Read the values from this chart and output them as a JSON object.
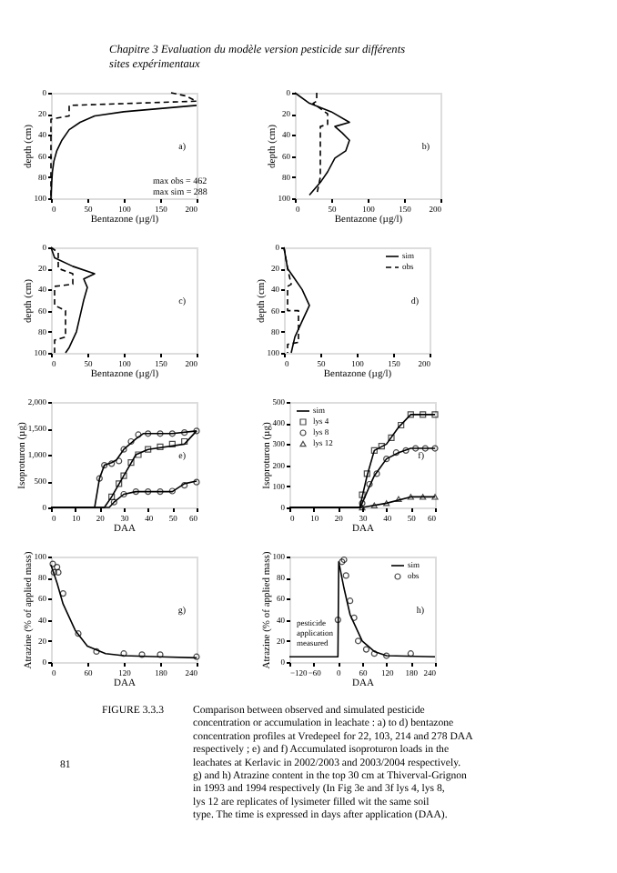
{
  "chart_data": [
    {
      "type": "other",
      "title": "Chapitre 3 Evaluation du modèle version pesticide sur différents sites expérimentaux"
    },
    {
      "type": "line",
      "xlabel": "Bentazone (µg/l)",
      "ylabel": "depth (cm)",
      "xlim": [
        0,
        200
      ],
      "ylim": [
        100,
        0
      ],
      "xticks": [
        0,
        50,
        100,
        150,
        200
      ],
      "yticks": [
        0,
        20,
        40,
        60,
        80,
        100
      ],
      "annotations": [
        "a)",
        "max obs = 462",
        "max sim = 288"
      ],
      "series": [
        {
          "color": "#000000",
          "line_style": "solid",
          "x": [
            200,
            150,
            100,
            60,
            40,
            25,
            15,
            8,
            4,
            2,
            1,
            0
          ],
          "values": [
            12,
            15,
            18,
            22,
            28,
            35,
            45,
            55,
            65,
            75,
            85,
            100
          ]
        },
        {
          "color": "#000000",
          "line_style": "dashed",
          "x": [
            165,
            185,
            200,
            25,
            25,
            0,
            0
          ],
          "values": [
            0,
            3,
            8,
            12,
            22,
            25,
            100
          ]
        }
      ]
    },
    {
      "type": "line",
      "xlabel": "Bentazone (µg/l)",
      "ylabel": "depth (cm)",
      "xlim": [
        0,
        200
      ],
      "ylim": [
        100,
        0
      ],
      "xticks": [
        0,
        50,
        100,
        150,
        200
      ],
      "yticks": [
        0,
        20,
        40,
        60,
        80,
        100
      ],
      "annotations": [
        "b)"
      ],
      "series": [
        {
          "color": "#000000",
          "line_style": "solid",
          "x": [
            0,
            20,
            50,
            75,
            55,
            65,
            75,
            70,
            55,
            45,
            35,
            20
          ],
          "values": [
            0,
            10,
            18,
            28,
            32,
            38,
            45,
            55,
            62,
            75,
            85,
            97
          ]
        },
        {
          "color": "#000000",
          "line_style": "dashed",
          "x": [
            30,
            30,
            25,
            45,
            45,
            35,
            35,
            30
          ],
          "values": [
            0,
            8,
            10,
            20,
            30,
            32,
            80,
            97
          ]
        }
      ]
    },
    {
      "type": "line",
      "xlabel": "Bentazone (µg/l)",
      "ylabel": "depth (cm)",
      "xlim": [
        0,
        200
      ],
      "ylim": [
        100,
        0
      ],
      "xticks": [
        0,
        50,
        100,
        150,
        200
      ],
      "yticks": [
        0,
        20,
        40,
        60,
        80,
        100
      ],
      "annotations": [
        "c)"
      ],
      "series": [
        {
          "color": "#000000",
          "line_style": "solid",
          "x": [
            0,
            5,
            30,
            60,
            45,
            50,
            45,
            40,
            35,
            25,
            20
          ],
          "values": [
            0,
            10,
            18,
            25,
            30,
            38,
            50,
            65,
            80,
            95,
            100
          ]
        },
        {
          "color": "#000000",
          "line_style": "dashed",
          "x": [
            0,
            10,
            10,
            30,
            30,
            5,
            5,
            20,
            20,
            5,
            5
          ],
          "values": [
            0,
            5,
            20,
            25,
            35,
            37,
            55,
            60,
            85,
            88,
            100
          ]
        }
      ]
    },
    {
      "type": "line",
      "xlabel": "Bentazone (µg/l)",
      "ylabel": "depth (cm)",
      "xlim": [
        0,
        200
      ],
      "ylim": [
        100,
        0
      ],
      "xticks": [
        0,
        50,
        100,
        150,
        200
      ],
      "yticks": [
        0,
        20,
        40,
        60,
        80,
        100
      ],
      "annotations": [
        "d)"
      ],
      "legend": "top right",
      "series": [
        {
          "name": "sim",
          "color": "#000000",
          "line_style": "solid",
          "x": [
            0,
            5,
            15,
            25,
            35,
            25,
            15,
            10
          ],
          "values": [
            0,
            20,
            30,
            40,
            55,
            70,
            85,
            100
          ]
        },
        {
          "name": "obs",
          "color": "#000000",
          "line_style": "dashed",
          "x": [
            0,
            5,
            10,
            5,
            5,
            20,
            20,
            5,
            5
          ],
          "values": [
            0,
            20,
            35,
            37,
            60,
            60,
            90,
            92,
            100
          ]
        }
      ]
    },
    {
      "type": "line",
      "xlabel": "DAA",
      "ylabel": "Isoproturon (µg)",
      "xlim": [
        0,
        60
      ],
      "ylim": [
        0,
        2000
      ],
      "xticks": [
        0,
        10,
        20,
        30,
        40,
        50,
        60
      ],
      "yticks": [
        0,
        500,
        {
          "value": 1000,
          "label": "1,000"
        },
        {
          "value": 1500,
          "label": "1,500"
        },
        {
          "value": 2000,
          "label": "2,000"
        }
      ],
      "annotations": [
        "e)"
      ],
      "series": [
        {
          "color": "#000000",
          "line_style": "solid",
          "x": [
            0,
            18,
            20,
            22,
            25,
            27,
            30,
            35,
            38,
            50,
            60
          ],
          "values": [
            0,
            0,
            550,
            800,
            850,
            900,
            1100,
            1300,
            1400,
            1400,
            1450
          ]
        },
        {
          "color": "#000000",
          "line_style": "solid",
          "x": [
            0,
            22,
            25,
            30,
            35,
            40,
            55,
            60
          ],
          "values": [
            0,
            0,
            200,
            600,
            1000,
            1100,
            1200,
            1450
          ]
        },
        {
          "color": "#000000",
          "line_style": "solid",
          "x": [
            0,
            24,
            26,
            30,
            35,
            50,
            55,
            60
          ],
          "values": [
            0,
            0,
            100,
            250,
            300,
            300,
            450,
            500
          ]
        },
        {
          "type": "scatter",
          "color": "#000000",
          "marker": "circle",
          "x": [
            20,
            22,
            25,
            28,
            30,
            33,
            36,
            40,
            45,
            50,
            55,
            60
          ],
          "values": [
            550,
            800,
            830,
            880,
            1100,
            1250,
            1380,
            1400,
            1400,
            1400,
            1420,
            1450
          ]
        },
        {
          "type": "scatter",
          "color": "#000000",
          "marker": "square",
          "x": [
            25,
            28,
            30,
            33,
            36,
            40,
            45,
            50,
            55
          ],
          "values": [
            200,
            450,
            600,
            850,
            1000,
            1100,
            1150,
            1200,
            1250
          ]
        },
        {
          "type": "scatter",
          "color": "#000000",
          "marker": "circle",
          "x": [
            26,
            30,
            35,
            40,
            45,
            50,
            55,
            60
          ],
          "values": [
            100,
            250,
            300,
            300,
            300,
            310,
            420,
            480
          ]
        }
      ]
    },
    {
      "type": "line",
      "xlabel": "DAA",
      "ylabel": "Isoproturon (µg)",
      "xlim": [
        0,
        60
      ],
      "ylim": [
        0,
        500
      ],
      "xticks": [
        0,
        10,
        20,
        30,
        40,
        50,
        60
      ],
      "yticks": [
        0,
        100,
        200,
        300,
        400,
        500
      ],
      "annotations": [
        "f)"
      ],
      "legend": "top left",
      "series": [
        {
          "name": "sim",
          "color": "#000000",
          "line_style": "solid",
          "x": [
            0,
            29,
            30,
            32,
            35,
            40,
            45,
            50,
            60
          ],
          "values": [
            0,
            0,
            50,
            150,
            270,
            300,
            380,
            440,
            440
          ]
        },
        {
          "color": "#000000",
          "line_style": "solid",
          "x": [
            0,
            29,
            30,
            33,
            35,
            40,
            45,
            50,
            60
          ],
          "values": [
            0,
            0,
            20,
            100,
            150,
            230,
            260,
            280,
            280
          ]
        },
        {
          "color": "#000000",
          "line_style": "solid",
          "x": [
            0,
            30,
            40,
            50,
            60
          ],
          "values": [
            0,
            0,
            20,
            50,
            50
          ]
        },
        {
          "name": "lys 4",
          "type": "scatter",
          "color": "#000000",
          "marker": "square",
          "x": [
            30,
            32,
            35,
            38,
            42,
            46,
            50,
            55,
            60
          ],
          "values": [
            60,
            160,
            270,
            290,
            330,
            390,
            440,
            440,
            440
          ]
        },
        {
          "name": "lys 8",
          "type": "scatter",
          "color": "#000000",
          "marker": "circle",
          "x": [
            30,
            33,
            36,
            40,
            44,
            48,
            52,
            56,
            60
          ],
          "values": [
            20,
            110,
            160,
            230,
            260,
            270,
            280,
            280,
            280
          ]
        },
        {
          "name": "lys 12",
          "type": "scatter",
          "color": "#000000",
          "marker": "triangle",
          "x": [
            30,
            35,
            40,
            45,
            50,
            55,
            60
          ],
          "values": [
            0,
            10,
            20,
            40,
            50,
            50,
            50
          ]
        }
      ]
    },
    {
      "type": "line",
      "xlabel": "DAA",
      "ylabel": "Atrazine (% of applied mass)",
      "xlim": [
        0,
        240
      ],
      "ylim": [
        0,
        100
      ],
      "xticks": [
        0,
        60,
        120,
        180,
        240
      ],
      "yticks": [
        0,
        20,
        40,
        60,
        80,
        100
      ],
      "annotations": [
        "g)"
      ],
      "series": [
        {
          "color": "#000000",
          "line_style": "solid",
          "x": [
            0,
            10,
            20,
            40,
            60,
            90,
            120,
            180,
            240
          ],
          "values": [
            92,
            75,
            55,
            30,
            15,
            8,
            6,
            5,
            4
          ]
        },
        {
          "type": "scatter",
          "color": "#000000",
          "marker": "circle",
          "x": [
            3,
            5,
            10,
            12,
            20,
            45,
            75,
            120,
            150,
            180,
            240
          ],
          "values": [
            93,
            85,
            90,
            85,
            65,
            27,
            10,
            8,
            7,
            7,
            5
          ]
        }
      ]
    },
    {
      "type": "line",
      "xlabel": "DAA",
      "ylabel": "Atrazine (% of applied mass)",
      "xlim": [
        -120,
        240
      ],
      "ylim": [
        0,
        100
      ],
      "xticks": [
        -120,
        -60,
        0,
        60,
        120,
        180,
        240
      ],
      "yticks": [
        0,
        20,
        40,
        60,
        80,
        100
      ],
      "annotations": [
        "h)",
        "pesticide application measured"
      ],
      "legend": "top right",
      "series": [
        {
          "name": "sim",
          "color": "#000000",
          "line_style": "solid",
          "x": [
            -120,
            0,
            2,
            15,
            30,
            60,
            90,
            120,
            240
          ],
          "values": [
            5,
            5,
            95,
            70,
            45,
            20,
            10,
            6,
            5
          ]
        },
        {
          "name": "obs",
          "type": "scatter",
          "color": "#000000",
          "marker": "circle",
          "x": [
            0,
            10,
            15,
            20,
            30,
            40,
            50,
            70,
            90,
            120,
            180
          ],
          "values": [
            40,
            95,
            97,
            82,
            58,
            42,
            20,
            12,
            8,
            6,
            8
          ]
        }
      ]
    },
    {
      "type": "other",
      "annotations": [
        "FIGURE 3.3.3",
        "Comparison between observed and simulated pesticide concentration or accumulation in leachate : a) to d) bentazone concentration profiles at Vredepeel for 22, 103, 214 and 278 DAA respectively ; e) and f) Accumulated isoproturon loads in the leachates at Kerlavic in 2002/2003 and 2003/2004 respectively. g) and h) Atrazine content in the top 30 cm at Thiverval-Grignon in 1993 and 1994 respectively (In Fig 3e and 3f lys 4, lys 8, lys 12 are replicates of lysimeter filled wit the same soil type. The time is expressed in days after application (DAA).",
        "81"
      ]
    }
  ]
}
